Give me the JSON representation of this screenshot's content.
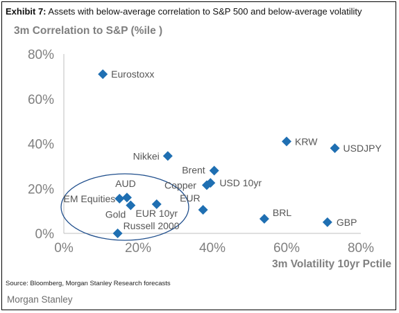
{
  "header": {
    "exhibit": "Exhibit 7:",
    "title": "Assets with below-average correlation to S&P 500 and below-average volatility"
  },
  "colors": {
    "marker": "#1f6fb2",
    "axis_text": "#7f7f7f",
    "ellipse": "#1f4e8c"
  },
  "chart_data": {
    "type": "scatter",
    "ylabel": "3m Correlation to S&P (%ile )",
    "xlabel": "3m Volatility 10yr Pctile",
    "xlim": [
      0,
      80
    ],
    "ylim": [
      0,
      80
    ],
    "x_ticks": [
      "0%",
      "20%",
      "40%",
      "60%",
      "80%"
    ],
    "y_ticks": [
      "0%",
      "20%",
      "40%",
      "60%",
      "80%"
    ],
    "grid": false,
    "points": [
      {
        "label": "Eurostoxx",
        "x": 10.5,
        "y": 71
      },
      {
        "label": "Nikkei",
        "x": 28,
        "y": 34.5
      },
      {
        "label": "KRW",
        "x": 60,
        "y": 41
      },
      {
        "label": "USDJPY",
        "x": 73,
        "y": 38
      },
      {
        "label": "Brent",
        "x": 40.5,
        "y": 28
      },
      {
        "label": "USD 10yr",
        "x": 39.5,
        "y": 22.5
      },
      {
        "label": "Copper",
        "x": 38.5,
        "y": 21.5
      },
      {
        "label": "AUD",
        "x": 17,
        "y": 16
      },
      {
        "label": "EM Equities",
        "x": 15,
        "y": 15.5
      },
      {
        "label": "Gold",
        "x": 18,
        "y": 12.5
      },
      {
        "label": "EUR 10yr",
        "x": 25,
        "y": 13
      },
      {
        "label": "EUR",
        "x": 37.5,
        "y": 10.5
      },
      {
        "label": "BRL",
        "x": 54,
        "y": 6.5
      },
      {
        "label": "GBP",
        "x": 71,
        "y": 5
      },
      {
        "label": "Russell 2000",
        "x": 14.5,
        "y": 0
      }
    ]
  },
  "footer": {
    "source": "Source: Bloomberg, Morgan Stanley Research forecasts",
    "brand": "Morgan Stanley"
  }
}
